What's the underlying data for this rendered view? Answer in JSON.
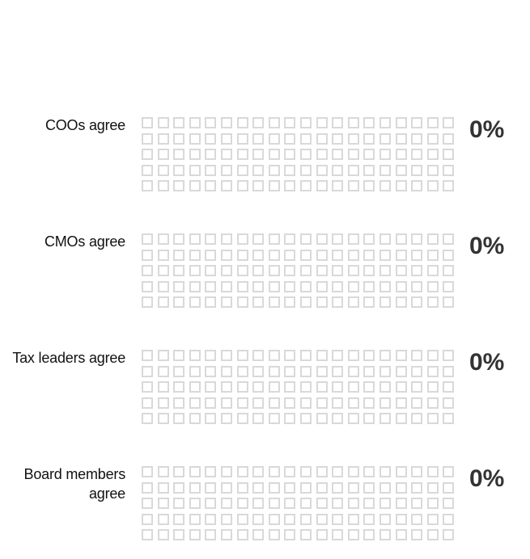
{
  "chart_data": {
    "type": "waffle",
    "grid": {
      "columns": 20,
      "rows": 5,
      "total_cells": 100
    },
    "rows": [
      {
        "label": "COOs agree",
        "percent_label": "0%",
        "value": 0
      },
      {
        "label": "CMOs agree",
        "percent_label": "0%",
        "value": 0
      },
      {
        "label": "Tax leaders agree",
        "percent_label": "0%",
        "value": 0
      },
      {
        "label": "Board members agree",
        "percent_label": "0%",
        "value": 0
      }
    ],
    "colors": {
      "empty_cell": "#d9d9d9",
      "filled_cell": "#3a3a3a",
      "percent_text": "#333333"
    }
  }
}
